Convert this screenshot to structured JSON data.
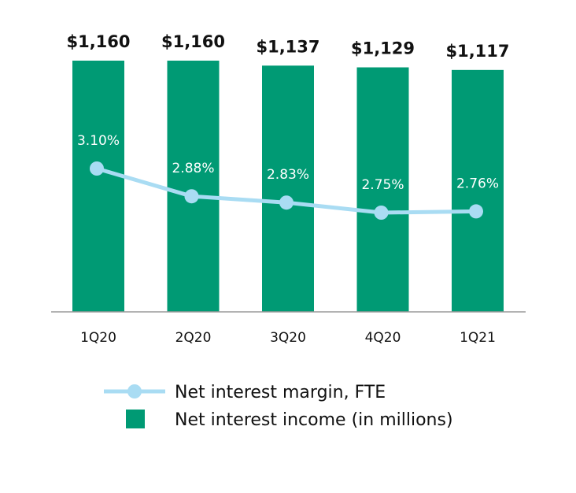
{
  "chart_data": {
    "type": "bar",
    "categories": [
      "1Q20",
      "2Q20",
      "3Q20",
      "4Q20",
      "1Q21"
    ],
    "series": [
      {
        "name": "Net interest income (in millions)",
        "kind": "bar",
        "values": [
          1160,
          1160,
          1137,
          1129,
          1117
        ],
        "labels": [
          "$1,160",
          "$1,160",
          "$1,137",
          "$1,129",
          "$1,117"
        ],
        "color": "#009a74"
      },
      {
        "name": "Net interest margin, FTE",
        "kind": "line",
        "values": [
          3.1,
          2.88,
          2.83,
          2.75,
          2.76
        ],
        "labels": [
          "3.10%",
          "2.88%",
          "2.83%",
          "2.75%",
          "2.76%"
        ],
        "color": "#a9dcf3"
      }
    ],
    "bar_axis_range": [
      0,
      1160
    ],
    "legend": {
      "placement": "bottom",
      "entries": [
        "Net interest margin, FTE",
        "Net interest income (in millions)"
      ]
    },
    "grid": false
  }
}
